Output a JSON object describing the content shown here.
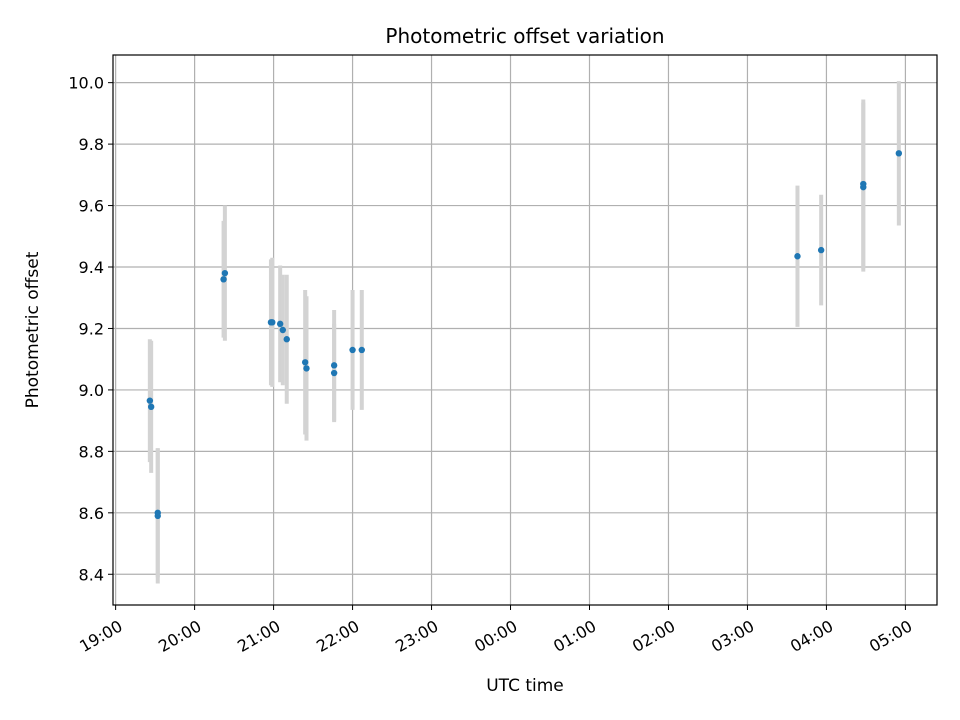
{
  "chart_data": {
    "type": "scatter",
    "title": "Photometric offset variation",
    "xlabel": "UTC time",
    "ylabel": "Photometric offset",
    "x_axis_kind": "time",
    "x_range": [
      "18:58",
      "05:24"
    ],
    "ylim": [
      8.3,
      10.09
    ],
    "grid": true,
    "point_color": "#1f77b4",
    "errorbar_color": "#d3d3d3",
    "x_ticks": [
      "19:00",
      "20:00",
      "21:00",
      "22:00",
      "23:00",
      "00:00",
      "01:00",
      "02:00",
      "03:00",
      "04:00",
      "05:00"
    ],
    "y_ticks": [
      "8.4",
      "8.6",
      "8.8",
      "9.0",
      "9.2",
      "9.4",
      "9.6",
      "9.8",
      "10.0"
    ],
    "points": [
      {
        "x": "19:26",
        "y": 8.965,
        "err": 0.2
      },
      {
        "x": "19:27",
        "y": 8.945,
        "err": 0.215
      },
      {
        "x": "19:32",
        "y": 8.6,
        "err": 0.21
      },
      {
        "x": "19:32",
        "y": 8.59,
        "err": 0.22
      },
      {
        "x": "20:22",
        "y": 9.36,
        "err": 0.19
      },
      {
        "x": "20:23",
        "y": 9.38,
        "err": 0.22
      },
      {
        "x": "20:58",
        "y": 9.22,
        "err": 0.205
      },
      {
        "x": "20:59",
        "y": 9.22,
        "err": 0.21
      },
      {
        "x": "21:05",
        "y": 9.215,
        "err": 0.19
      },
      {
        "x": "21:07",
        "y": 9.195,
        "err": 0.18
      },
      {
        "x": "21:10",
        "y": 9.165,
        "err": 0.21
      },
      {
        "x": "21:24",
        "y": 9.09,
        "err": 0.235
      },
      {
        "x": "21:25",
        "y": 9.07,
        "err": 0.235
      },
      {
        "x": "21:46",
        "y": 9.08,
        "err": 0.18
      },
      {
        "x": "21:46",
        "y": 9.055,
        "err": 0.16
      },
      {
        "x": "22:00",
        "y": 9.13,
        "err": 0.195
      },
      {
        "x": "22:07",
        "y": 9.13,
        "err": 0.195
      },
      {
        "x": "03:38",
        "y": 9.435,
        "err": 0.23
      },
      {
        "x": "03:56",
        "y": 9.455,
        "err": 0.18
      },
      {
        "x": "04:28",
        "y": 9.67,
        "err": 0.275
      },
      {
        "x": "04:28",
        "y": 9.66,
        "err": 0.275
      },
      {
        "x": "04:55",
        "y": 9.77,
        "err": 0.235
      }
    ]
  }
}
